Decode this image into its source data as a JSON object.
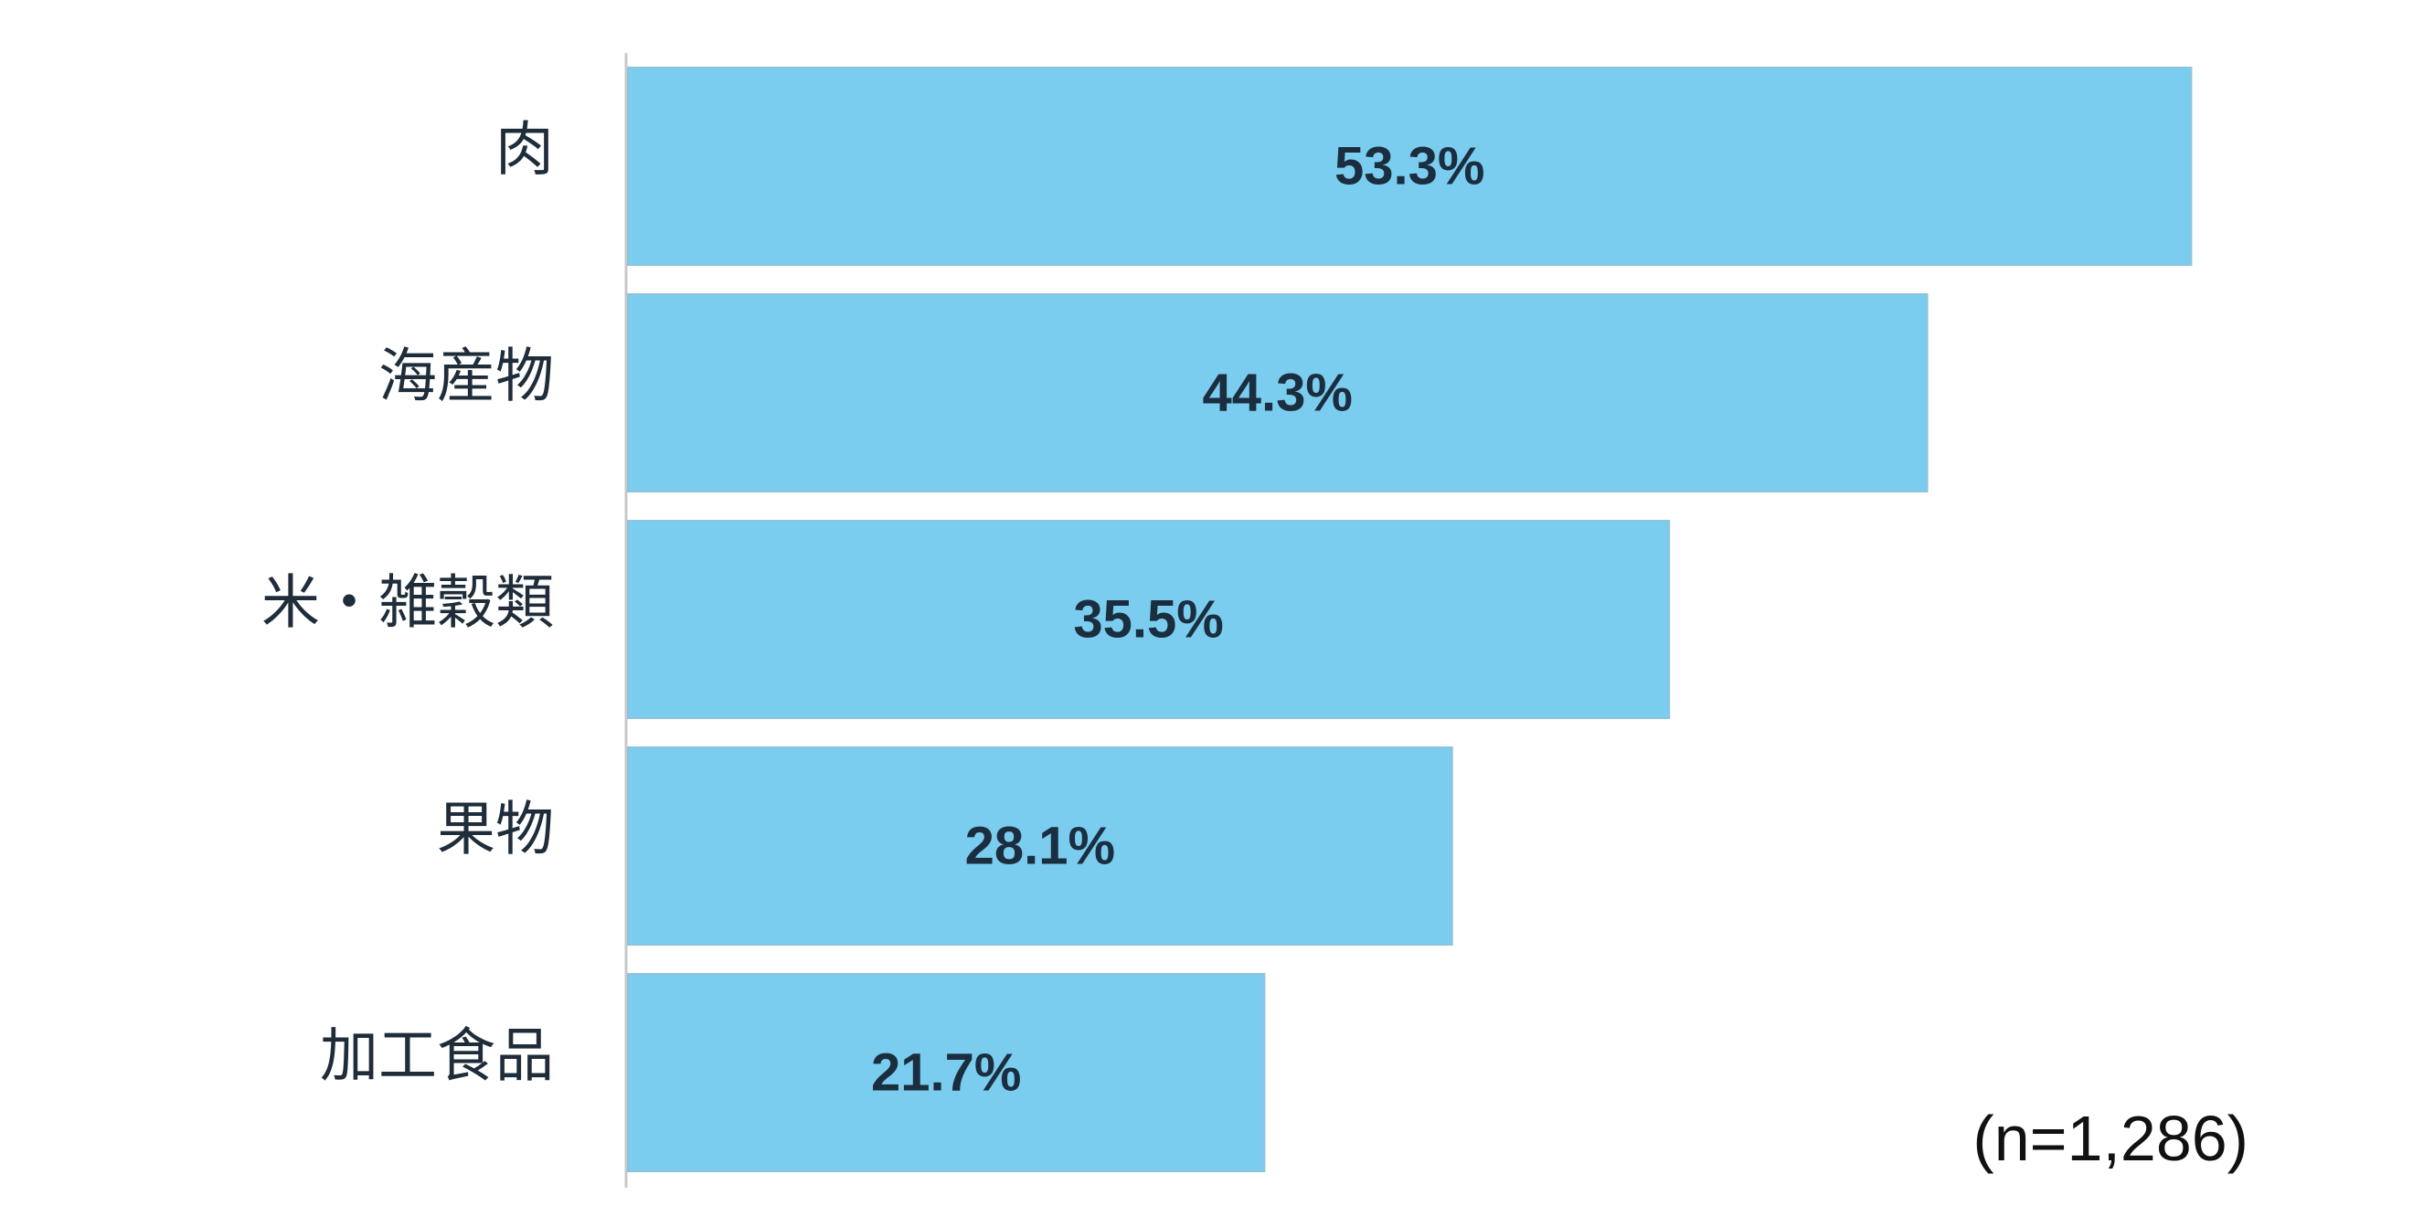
{
  "chart_data": {
    "type": "bar",
    "orientation": "horizontal",
    "categories": [
      "肉",
      "海産物",
      "米・雑穀類",
      "果物",
      "加工食品"
    ],
    "values": [
      53.3,
      44.3,
      35.5,
      28.1,
      21.7
    ],
    "value_labels": [
      "53.3%",
      "44.3%",
      "35.5%",
      "28.1%",
      "21.7%"
    ],
    "unit": "%",
    "xlim": [
      0,
      60
    ],
    "grid": false,
    "legend": "none",
    "note": "(n=1,286)",
    "colors": {
      "bar": "#7acdee",
      "bar_edge": "#8fc3dc",
      "axis": "#c8c8c8",
      "text": "#1f2d3a"
    }
  }
}
